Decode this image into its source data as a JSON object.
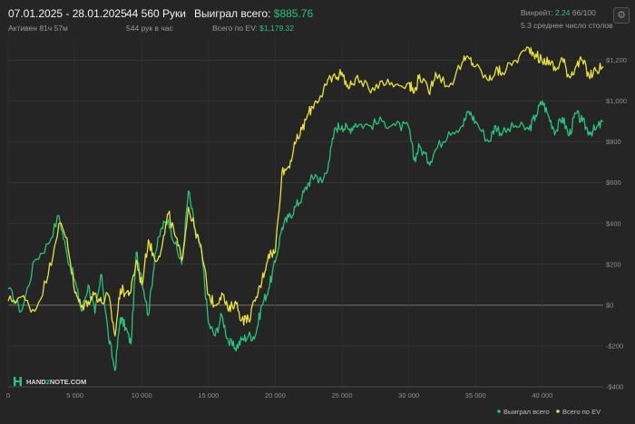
{
  "header": {
    "date_range": "07.01.2025 - 28.01.2025",
    "active": "Активен 81ч 57м",
    "hands": "44 560 Руки",
    "hands_per_hour": "544 рук в час",
    "won_label": "Выиграл всего:",
    "won_value": "$885.76",
    "ev_label": "Всего по EV:",
    "ev_value": "$1,179.32",
    "winrate_label": "Винрейт:",
    "winrate_value": "2.24",
    "winrate_count": "66/100",
    "avg_tables": "5.3 среднее число столов",
    "settings_icon": "gear-icon"
  },
  "logo": {
    "left": "HAND",
    "mid": "2",
    "right": "NOTE.COM"
  },
  "colors": {
    "won": "#27c47a",
    "ev": "#e8e23a",
    "background": "#252525"
  },
  "chart_data": {
    "type": "line",
    "xlim": [
      0,
      44560
    ],
    "ylim": [
      -400,
      1300
    ],
    "x_ticks": [
      0,
      5000,
      10000,
      15000,
      20000,
      25000,
      30000,
      35000,
      40000
    ],
    "x_tick_labels": [
      "0",
      "5 000",
      "10 000",
      "15 000",
      "20 000",
      "25 000",
      "30 000",
      "35 000",
      "40 000"
    ],
    "y_ticks": [
      -400,
      -200,
      0,
      200,
      400,
      600,
      800,
      1000,
      1200
    ],
    "y_tick_labels": [
      "-$400",
      "-$200",
      "$0",
      "$200",
      "$400",
      "$600",
      "$800",
      "$1,000",
      "$1,200"
    ],
    "legend_position": "bottom-right",
    "grid": true,
    "x": [
      0,
      1000,
      2000,
      3000,
      3800,
      4400,
      5000,
      5500,
      6000,
      6500,
      7000,
      7500,
      8000,
      8400,
      8800,
      9200,
      9600,
      10000,
      10500,
      11000,
      11500,
      12000,
      12500,
      13000,
      13500,
      14000,
      14500,
      15000,
      15500,
      16000,
      16500,
      17000,
      17500,
      18000,
      18500,
      19000,
      19500,
      20000,
      20500,
      21000,
      21500,
      22000,
      22500,
      23000,
      23500,
      24000,
      24500,
      25000,
      25500,
      26000,
      27000,
      28000,
      29000,
      30000,
      30400,
      30800,
      31500,
      32000,
      33000,
      34000,
      34500,
      35000,
      36000,
      36500,
      37000,
      38000,
      39000,
      39500,
      40000,
      40500,
      41000,
      41500,
      42000,
      42500,
      43000,
      43500,
      44000,
      44560
    ],
    "series": [
      {
        "name": "Выиграл всего",
        "color": "#27c47a",
        "values": [
          80,
          -30,
          220,
          300,
          440,
          250,
          120,
          -30,
          100,
          -40,
          150,
          -150,
          -320,
          -60,
          -110,
          -190,
          260,
          140,
          -50,
          250,
          380,
          420,
          300,
          200,
          560,
          370,
          250,
          -90,
          -150,
          -50,
          -180,
          -210,
          -170,
          -150,
          -150,
          0,
          80,
          210,
          380,
          430,
          480,
          530,
          600,
          640,
          600,
          700,
          870,
          880,
          860,
          890,
          880,
          900,
          880,
          870,
          710,
          780,
          700,
          760,
          850,
          880,
          950,
          900,
          800,
          880,
          840,
          880,
          860,
          930,
          1000,
          920,
          850,
          920,
          830,
          940,
          900,
          850,
          860,
          900
        ]
      },
      {
        "name": "Всего по EV",
        "color": "#e8e23a",
        "values": [
          20,
          40,
          -30,
          150,
          400,
          330,
          60,
          -10,
          20,
          60,
          10,
          50,
          -150,
          80,
          60,
          70,
          220,
          100,
          320,
          220,
          280,
          450,
          340,
          220,
          480,
          370,
          260,
          50,
          0,
          60,
          -30,
          20,
          -70,
          -70,
          20,
          120,
          250,
          260,
          650,
          680,
          790,
          860,
          940,
          1000,
          1020,
          1110,
          1120,
          1140,
          1060,
          1110,
          1060,
          1100,
          1080,
          1090,
          1040,
          1130,
          1040,
          1140,
          1070,
          1190,
          1210,
          1170,
          1100,
          1150,
          1140,
          1200,
          1260,
          1230,
          1190,
          1200,
          1150,
          1210,
          1120,
          1170,
          1200,
          1120,
          1150,
          1170
        ]
      }
    ]
  }
}
